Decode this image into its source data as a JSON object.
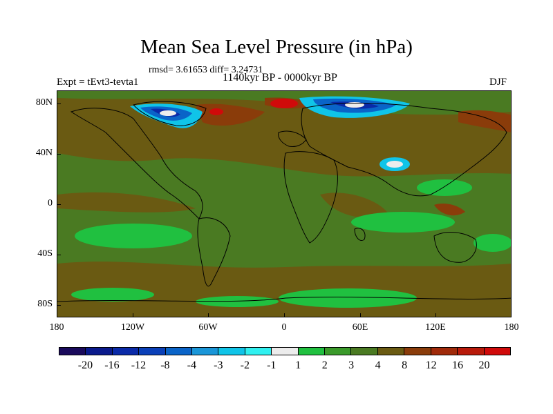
{
  "title": "Mean Sea Level Pressure (in hPa)",
  "stats": "rmsd= 3.61653 diff= 3.24731",
  "experiment": "Expt = tEvt3-tevta1",
  "period": "1140kyr BP - 0000kyr BP",
  "season": "DJF",
  "y_axis_labels": [
    "80N",
    "40N",
    "0",
    "40S",
    "80S"
  ],
  "x_axis_labels": [
    "180",
    "120W",
    "60W",
    "0",
    "60E",
    "120E",
    "180"
  ],
  "colorbar": {
    "labels": [
      "-20",
      "-16",
      "-12",
      "-8",
      "-4",
      "-3",
      "-2",
      "-1",
      "1",
      "2",
      "3",
      "4",
      "8",
      "12",
      "16",
      "20"
    ],
    "colors": [
      "#1a0a5c",
      "#0a1a8c",
      "#0a2aa8",
      "#0a40b8",
      "#0a64c8",
      "#1a96d8",
      "#10c4e8",
      "#30f0f0",
      "#ececec",
      "#20c040",
      "#3a9a2a",
      "#4a7a22",
      "#6a5a12",
      "#8a3c0a",
      "#a02a0a",
      "#b81a0a",
      "#d00a0a"
    ]
  },
  "colors": {
    "base_field": "#4a7a22",
    "warm": "#6a5a12",
    "positive": "#20c040",
    "negative": "#0a40b8"
  }
}
